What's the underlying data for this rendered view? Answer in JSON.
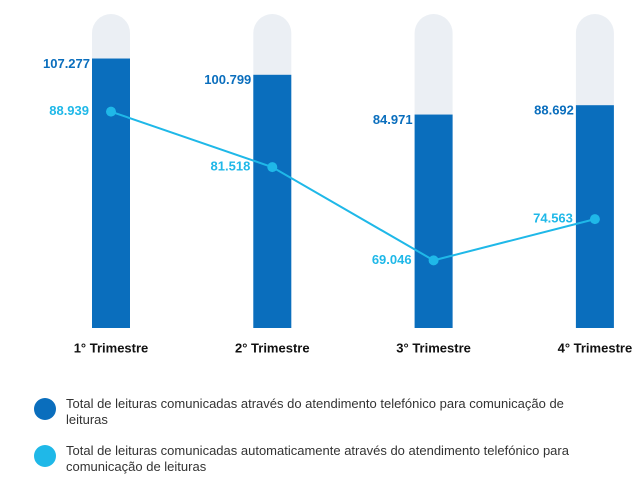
{
  "chart_data": {
    "type": "bar",
    "categories": [
      "1° Trimestre",
      "2° Trimestre",
      "3° Trimestre",
      "4° Trimestre"
    ],
    "series": [
      {
        "name": "Total de leituras comunicadas através do atendimento telefónico para comunicação de leituras",
        "type": "bar",
        "color": "#0a6ebd",
        "values": [
          107277,
          100799,
          84971,
          88692
        ],
        "value_labels": [
          "107.277",
          "100.799",
          "84.971",
          "88.692"
        ]
      },
      {
        "name": "Total de leituras comunicadas automaticamente através do atendimento telefónico para comunicação de leituras",
        "type": "line",
        "axis": "y2",
        "color": "#1fb8e8",
        "values": [
          88939,
          81518,
          69046,
          74563
        ],
        "value_labels": [
          "88.939",
          "81.518",
          "69.046",
          "74.563"
        ]
      }
    ],
    "ylim": [
      0,
      125000
    ],
    "y2lim": [
      60000,
      102000
    ]
  }
}
